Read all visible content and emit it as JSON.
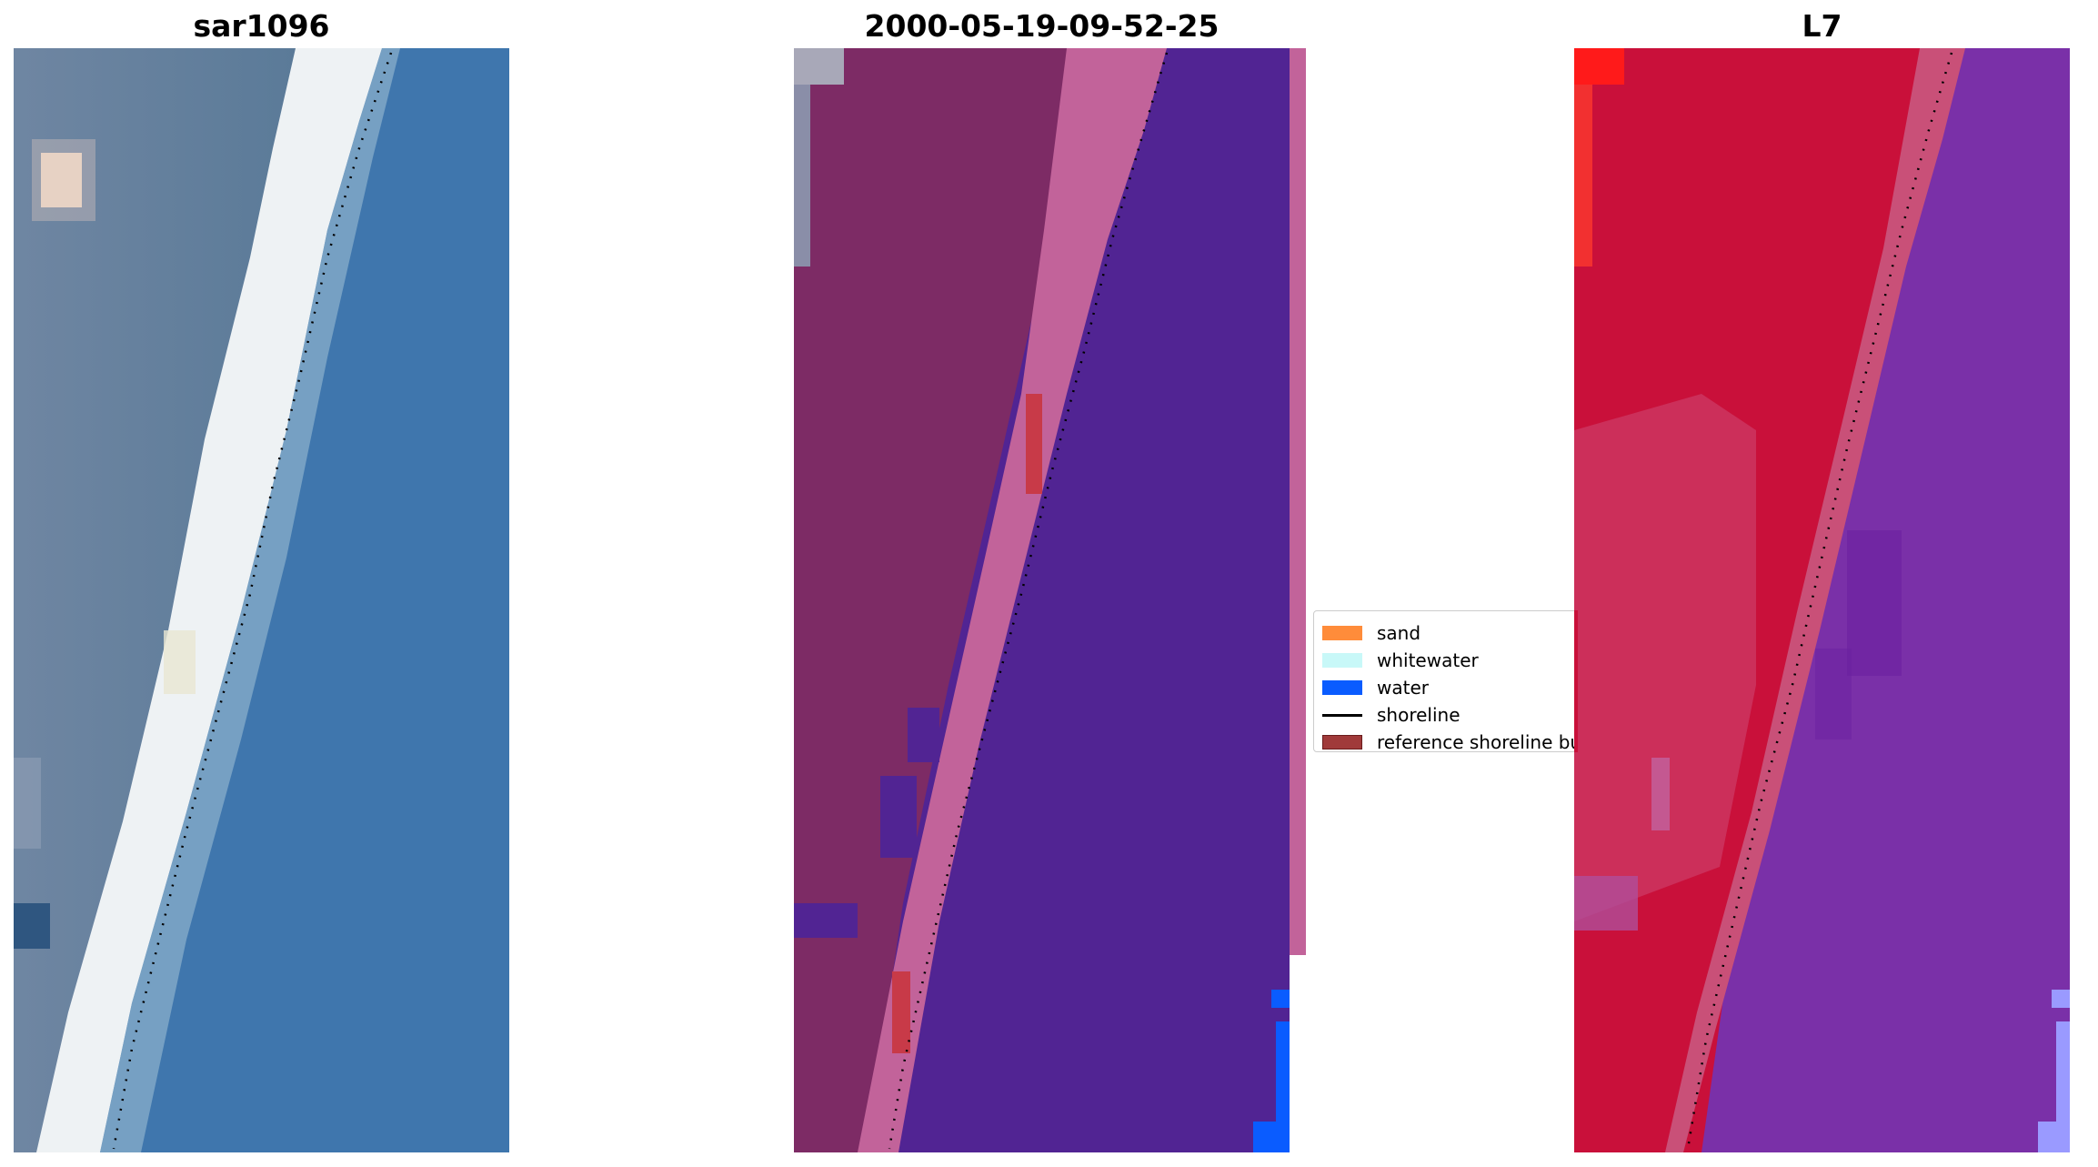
{
  "titles": {
    "left": "sar1096",
    "center": "2000-05-19-09-52-25",
    "right": "L7"
  },
  "panels": {
    "left": {
      "icon": "rgb-satellite-image",
      "description_colors": {
        "land": "#5f7e9e",
        "beach": "#eef1f3",
        "ocean": "#3e76ad"
      }
    },
    "center": {
      "icon": "classified-overlay-image",
      "description_colors": {
        "land": "#7d2b65",
        "beach": "#c2639a",
        "ocean": "#512493",
        "sand_band": "#c83a48",
        "water": "#0a5cff"
      }
    },
    "right": {
      "icon": "false-color-image",
      "description_colors": {
        "land": "#c9103a",
        "beach": "#c95078",
        "ocean": "#7a30a8",
        "edge": "#9a9aff"
      }
    }
  },
  "legend": {
    "items": [
      {
        "label": "sand",
        "color": "#ff8c3a",
        "kind": "patch"
      },
      {
        "label": "whitewater",
        "color": "#c8f8f8",
        "kind": "patch"
      },
      {
        "label": "water",
        "color": "#0a5cff",
        "kind": "patch"
      },
      {
        "label": "shoreline",
        "color": "#000000",
        "kind": "line"
      },
      {
        "label": "reference shoreline buffer",
        "color": "#a03a3a",
        "kind": "patch"
      }
    ]
  }
}
